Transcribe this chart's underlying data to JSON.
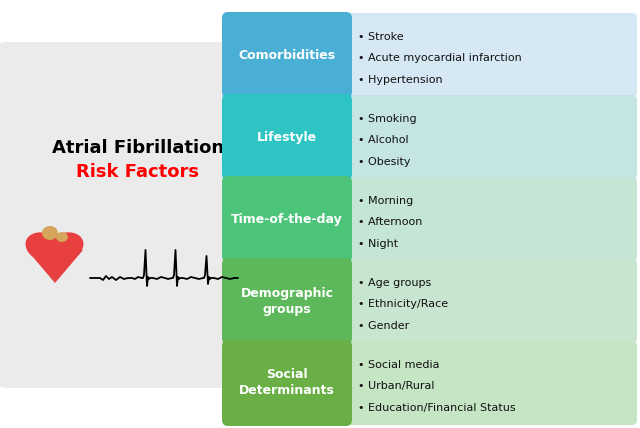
{
  "title_line1": "Atrial Fibrillation",
  "title_line2": "Risk Factors",
  "title_color1": "#000000",
  "title_color2": "#ff0000",
  "categories": [
    "Comorbidities",
    "Lifestyle",
    "Time-of-the-day",
    "Demographic\ngroups",
    "Social\nDeterminants"
  ],
  "category_colors": [
    "#4AAFD4",
    "#2EC4C4",
    "#4CC47A",
    "#5CB85A",
    "#6AAF45"
  ],
  "bg_colors": [
    "#D5E8F4",
    "#C5E5E5",
    "#C5E5D5",
    "#C8E5D0",
    "#C5E5C5"
  ],
  "bullets": [
    [
      "• Stroke",
      "• Acute myocardial infarction",
      "• Hypertension"
    ],
    [
      "• Smoking",
      "• Alcohol",
      "• Obesity"
    ],
    [
      "• Morning",
      "• Afternoon",
      "• Night"
    ],
    [
      "• Age groups",
      "• Ethnicity/Race",
      "• Gender"
    ],
    [
      "• Social media",
      "• Urban/Rural",
      "• Education/Financial Status"
    ]
  ],
  "left_bg_color": "#EBEBEB",
  "figsize": [
    6.4,
    4.28
  ],
  "dpi": 100
}
